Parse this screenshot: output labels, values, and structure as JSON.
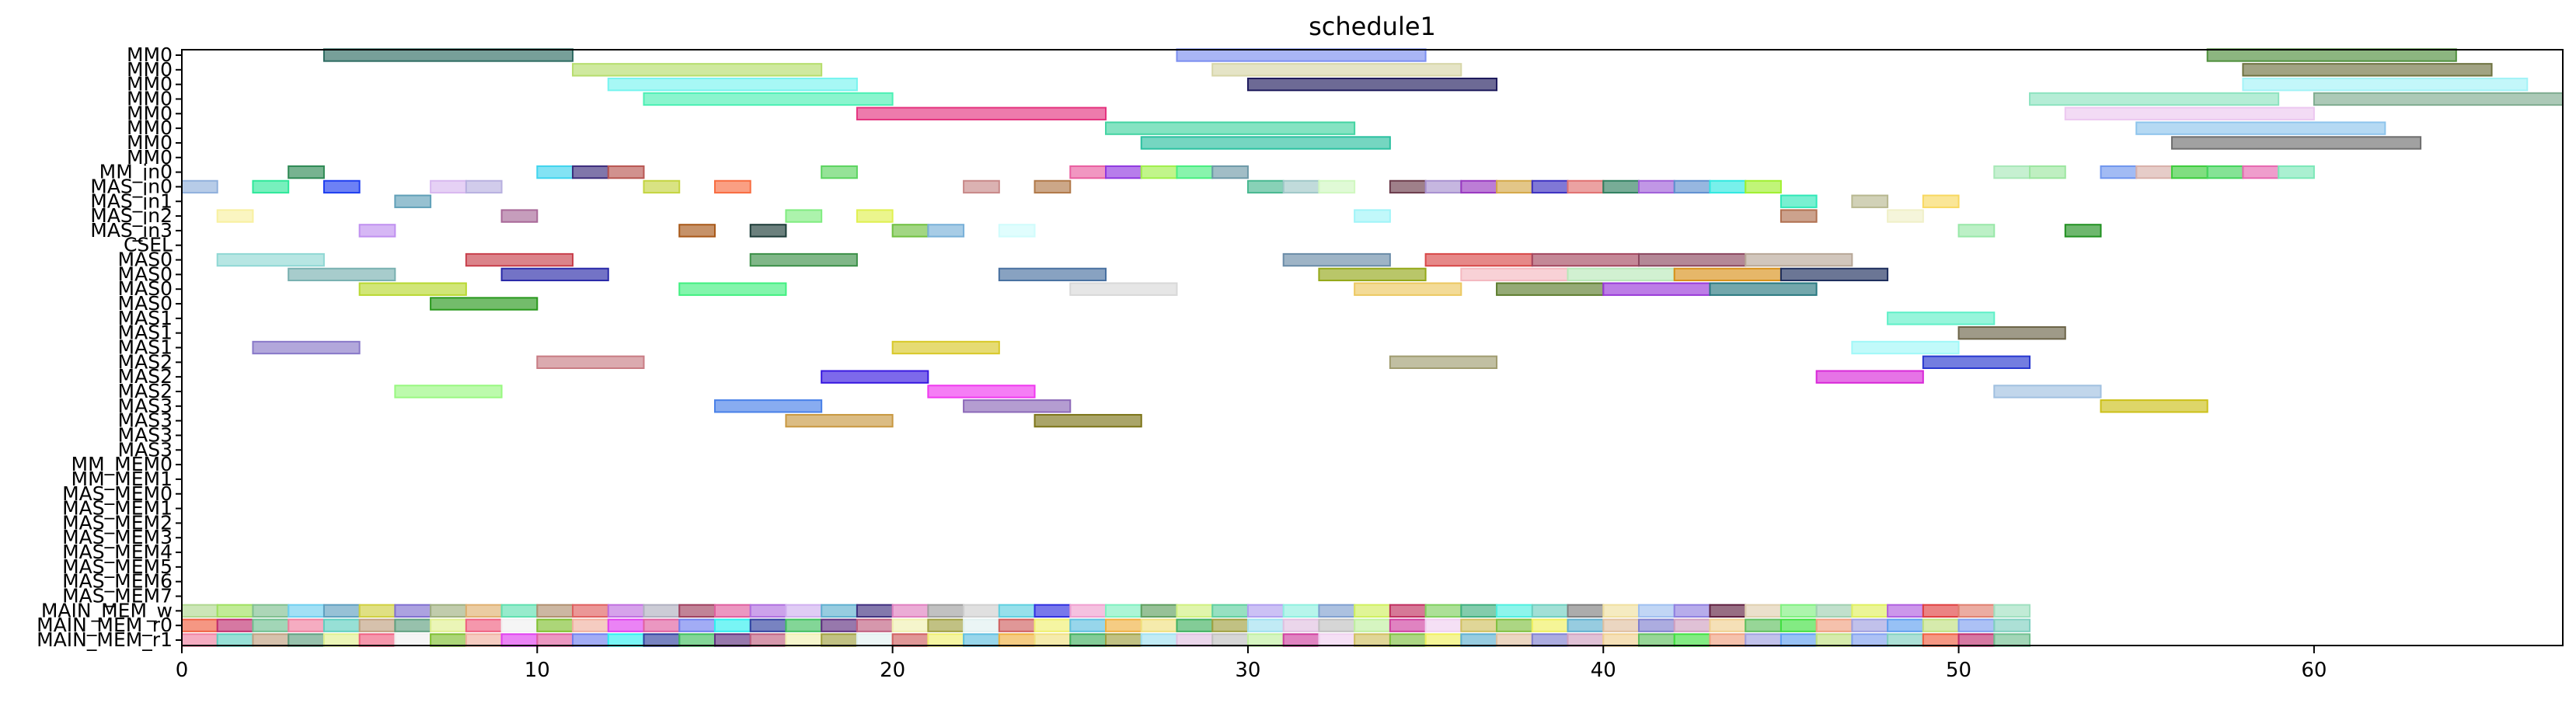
{
  "chart_data": {
    "type": "gantt",
    "title": "schedule1",
    "xlabel": "",
    "ylabel": "",
    "xlim": [
      0,
      67
    ],
    "x_ticks": [
      0,
      10,
      20,
      30,
      40,
      50,
      60
    ],
    "grid": false,
    "rows": [
      "MM0",
      "MM0",
      "MM0",
      "MM0",
      "MM0",
      "MM0",
      "MM0",
      "MM0",
      "MM_in0",
      "MAS_in0",
      "MAS_in1",
      "MAS_in2",
      "MAS_in3",
      "CSEL",
      "MAS0",
      "MAS0",
      "MAS0",
      "MAS0",
      "MAS1",
      "MAS1",
      "MAS1",
      "MAS2",
      "MAS2",
      "MAS2",
      "MAS3",
      "MAS3",
      "MAS3",
      "MAS3",
      "MM_MEM0",
      "MM_MEM1",
      "MAS_MEM0",
      "MAS_MEM1",
      "MAS_MEM2",
      "MAS_MEM3",
      "MAS_MEM4",
      "MAS_MEM5",
      "MAS_MEM6",
      "MAS_MEM7",
      "MAIN_MEM_w",
      "MAIN_MEM_r0",
      "MAIN_MEM_r1"
    ],
    "bars": [
      {
        "row": 0,
        "start": 4,
        "end": 11,
        "color": "#2e6b62"
      },
      {
        "row": 0,
        "start": 28,
        "end": 35,
        "color": "#7b8ef0"
      },
      {
        "row": 0,
        "start": 57,
        "end": 64,
        "color": "#4f8f3c"
      },
      {
        "row": 1,
        "start": 11,
        "end": 18,
        "color": "#b6dd6c"
      },
      {
        "row": 1,
        "start": 29,
        "end": 36,
        "color": "#d7d6a8"
      },
      {
        "row": 1,
        "start": 58,
        "end": 65,
        "color": "#6e7240"
      },
      {
        "row": 2,
        "start": 12,
        "end": 19,
        "color": "#78f4ef"
      },
      {
        "row": 2,
        "start": 30,
        "end": 37,
        "color": "#1e1a5c"
      },
      {
        "row": 2,
        "start": 58,
        "end": 66,
        "color": "#a3f3f7"
      },
      {
        "row": 3,
        "start": 13,
        "end": 20,
        "color": "#4cf0b4"
      },
      {
        "row": 3,
        "start": 52,
        "end": 59,
        "color": "#8de3c0"
      },
      {
        "row": 3,
        "start": 60,
        "end": 67,
        "color": "#7fac90"
      },
      {
        "row": 4,
        "start": 19,
        "end": 26,
        "color": "#e4347f"
      },
      {
        "row": 4,
        "start": 53,
        "end": 60,
        "color": "#ecc8f0"
      },
      {
        "row": 5,
        "start": 26,
        "end": 33,
        "color": "#43d4a2"
      },
      {
        "row": 5,
        "start": 55,
        "end": 62,
        "color": "#8ec4ec"
      },
      {
        "row": 6,
        "start": 27,
        "end": 34,
        "color": "#2bc0a0"
      },
      {
        "row": 6,
        "start": 56,
        "end": 63,
        "color": "#6e6e6e"
      },
      {
        "row": 8,
        "start": 3,
        "end": 4,
        "color": "#2e8a54"
      },
      {
        "row": 8,
        "start": 10,
        "end": 11,
        "color": "#40d4ee"
      },
      {
        "row": 8,
        "start": 11,
        "end": 12,
        "color": "#3c2c7c"
      },
      {
        "row": 8,
        "start": 12,
        "end": 13,
        "color": "#b85652"
      },
      {
        "row": 8,
        "start": 18,
        "end": 19,
        "color": "#5cd460"
      },
      {
        "row": 8,
        "start": 25,
        "end": 26,
        "color": "#e95ea0"
      },
      {
        "row": 8,
        "start": 26,
        "end": 27,
        "color": "#9038e0"
      },
      {
        "row": 8,
        "start": 27,
        "end": 28,
        "color": "#a0f04c"
      },
      {
        "row": 8,
        "start": 28,
        "end": 29,
        "color": "#48ee80"
      },
      {
        "row": 8,
        "start": 29,
        "end": 30,
        "color": "#6e9aa8"
      },
      {
        "row": 8,
        "start": 51,
        "end": 52,
        "color": "#a8e8b8"
      },
      {
        "row": 8,
        "start": 52,
        "end": 53,
        "color": "#9ce6a0"
      },
      {
        "row": 8,
        "start": 54,
        "end": 55,
        "color": "#7096ee"
      },
      {
        "row": 8,
        "start": 55,
        "end": 56,
        "color": "#d8b0aa"
      },
      {
        "row": 8,
        "start": 56,
        "end": 57,
        "color": "#3ccc3c"
      },
      {
        "row": 8,
        "start": 57,
        "end": 58,
        "color": "#44d45c"
      },
      {
        "row": 8,
        "start": 58,
        "end": 59,
        "color": "#e668b0"
      },
      {
        "row": 8,
        "start": 59,
        "end": 60,
        "color": "#7ce8b8"
      },
      {
        "row": 9,
        "start": 0,
        "end": 1,
        "color": "#90b0dc"
      },
      {
        "row": 9,
        "start": 2,
        "end": 3,
        "color": "#2ee89a"
      },
      {
        "row": 9,
        "start": 4,
        "end": 5,
        "color": "#1e3ef0"
      },
      {
        "row": 9,
        "start": 7,
        "end": 8,
        "color": "#d8b8f0"
      },
      {
        "row": 9,
        "start": 8,
        "end": 9,
        "color": "#b8b0e0"
      },
      {
        "row": 9,
        "start": 13,
        "end": 14,
        "color": "#c4d440"
      },
      {
        "row": 9,
        "start": 15,
        "end": 16,
        "color": "#f86c40"
      },
      {
        "row": 9,
        "start": 22,
        "end": 23,
        "color": "#c88888"
      },
      {
        "row": 9,
        "start": 24,
        "end": 25,
        "color": "#b07848"
      },
      {
        "row": 9,
        "start": 30,
        "end": 31,
        "color": "#48b890"
      },
      {
        "row": 9,
        "start": 31,
        "end": 32,
        "color": "#a0c8c8"
      },
      {
        "row": 9,
        "start": 32,
        "end": 33,
        "color": "#d0f8c0"
      },
      {
        "row": 9,
        "start": 34,
        "end": 35,
        "color": "#6c3c4c"
      },
      {
        "row": 9,
        "start": 35,
        "end": 36,
        "color": "#a890d0"
      },
      {
        "row": 9,
        "start": 36,
        "end": 37,
        "color": "#9838c0"
      },
      {
        "row": 9,
        "start": 37,
        "end": 38,
        "color": "#d4a848"
      },
      {
        "row": 9,
        "start": 38,
        "end": 39,
        "color": "#3c30c0"
      },
      {
        "row": 9,
        "start": 39,
        "end": 40,
        "color": "#e07070"
      },
      {
        "row": 9,
        "start": 40,
        "end": 41,
        "color": "#308060"
      },
      {
        "row": 9,
        "start": 41,
        "end": 42,
        "color": "#a060d8"
      },
      {
        "row": 9,
        "start": 42,
        "end": 43,
        "color": "#6090d0"
      },
      {
        "row": 9,
        "start": 43,
        "end": 44,
        "color": "#30e8e0"
      },
      {
        "row": 9,
        "start": 44,
        "end": 45,
        "color": "#a0f030"
      },
      {
        "row": 10,
        "start": 6,
        "end": 7,
        "color": "#60a0b8"
      },
      {
        "row": 10,
        "start": 45,
        "end": 46,
        "color": "#30e8b8"
      },
      {
        "row": 10,
        "start": 47,
        "end": 48,
        "color": "#b8b890"
      },
      {
        "row": 10,
        "start": 49,
        "end": 50,
        "color": "#f8d860"
      },
      {
        "row": 11,
        "start": 1,
        "end": 2,
        "color": "#f8f0a0"
      },
      {
        "row": 11,
        "start": 9,
        "end": 10,
        "color": "#a86898"
      },
      {
        "row": 11,
        "start": 17,
        "end": 18,
        "color": "#80ec80"
      },
      {
        "row": 11,
        "start": 19,
        "end": 20,
        "color": "#e0f050"
      },
      {
        "row": 11,
        "start": 33,
        "end": 34,
        "color": "#a0f4f8"
      },
      {
        "row": 11,
        "start": 45,
        "end": 46,
        "color": "#b07050"
      },
      {
        "row": 11,
        "start": 48,
        "end": 49,
        "color": "#f0f0c8"
      },
      {
        "row": 12,
        "start": 5,
        "end": 6,
        "color": "#c090f0"
      },
      {
        "row": 12,
        "start": 14,
        "end": 15,
        "color": "#a85818"
      },
      {
        "row": 12,
        "start": 16,
        "end": 17,
        "color": "#1c3c38"
      },
      {
        "row": 12,
        "start": 20,
        "end": 21,
        "color": "#70c040"
      },
      {
        "row": 12,
        "start": 21,
        "end": 22,
        "color": "#78b0d8"
      },
      {
        "row": 12,
        "start": 23,
        "end": 24,
        "color": "#d0fcfc"
      },
      {
        "row": 12,
        "start": 50,
        "end": 51,
        "color": "#98e8a8"
      },
      {
        "row": 12,
        "start": 53,
        "end": 54,
        "color": "#209020"
      },
      {
        "row": 14,
        "start": 1,
        "end": 4,
        "color": "#90d8d4"
      },
      {
        "row": 14,
        "start": 8,
        "end": 11,
        "color": "#c8404c"
      },
      {
        "row": 14,
        "start": 16,
        "end": 19,
        "color": "#3c9048"
      },
      {
        "row": 14,
        "start": 31,
        "end": 34,
        "color": "#6a8ca8"
      },
      {
        "row": 14,
        "start": 35,
        "end": 38,
        "color": "#d84848"
      },
      {
        "row": 14,
        "start": 38,
        "end": 41,
        "color": "#a44860"
      },
      {
        "row": 14,
        "start": 41,
        "end": 44,
        "color": "#8c4860"
      },
      {
        "row": 14,
        "start": 44,
        "end": 47,
        "color": "#b8a898"
      },
      {
        "row": 15,
        "start": 3,
        "end": 6,
        "color": "#78b0b0"
      },
      {
        "row": 15,
        "start": 9,
        "end": 12,
        "color": "#2828a8"
      },
      {
        "row": 15,
        "start": 23,
        "end": 26,
        "color": "#4870a0"
      },
      {
        "row": 15,
        "start": 32,
        "end": 35,
        "color": "#94a818"
      },
      {
        "row": 15,
        "start": 36,
        "end": 39,
        "color": "#f4b8c0"
      },
      {
        "row": 15,
        "start": 39,
        "end": 42,
        "color": "#b8e8b8"
      },
      {
        "row": 15,
        "start": 42,
        "end": 45,
        "color": "#d89018"
      },
      {
        "row": 15,
        "start": 45,
        "end": 48,
        "color": "#1c2c5c"
      },
      {
        "row": 16,
        "start": 5,
        "end": 8,
        "color": "#b8d830"
      },
      {
        "row": 16,
        "start": 14,
        "end": 17,
        "color": "#40f080"
      },
      {
        "row": 16,
        "start": 25,
        "end": 28,
        "color": "#d8d8d8"
      },
      {
        "row": 16,
        "start": 33,
        "end": 36,
        "color": "#ecc860"
      },
      {
        "row": 16,
        "start": 37,
        "end": 40,
        "color": "#5c7c2c"
      },
      {
        "row": 16,
        "start": 40,
        "end": 43,
        "color": "#9838d8"
      },
      {
        "row": 16,
        "start": 43,
        "end": 46,
        "color": "#287880"
      },
      {
        "row": 17,
        "start": 7,
        "end": 10,
        "color": "#28981c"
      },
      {
        "row": 18,
        "start": 48,
        "end": 51,
        "color": "#60f0c8"
      },
      {
        "row": 19,
        "start": 50,
        "end": 53,
        "color": "#6c6448"
      },
      {
        "row": 20,
        "start": 2,
        "end": 5,
        "color": "#8878c8"
      },
      {
        "row": 20,
        "start": 20,
        "end": 23,
        "color": "#d8c828"
      },
      {
        "row": 20,
        "start": 47,
        "end": 50,
        "color": "#a0f8f8"
      },
      {
        "row": 21,
        "start": 10,
        "end": 13,
        "color": "#c87c84"
      },
      {
        "row": 21,
        "start": 34,
        "end": 37,
        "color": "#a09c70"
      },
      {
        "row": 21,
        "start": 49,
        "end": 52,
        "color": "#2838d0"
      },
      {
        "row": 22,
        "start": 18,
        "end": 21,
        "color": "#3818e0"
      },
      {
        "row": 22,
        "start": 46,
        "end": 49,
        "color": "#d828d8"
      },
      {
        "row": 23,
        "start": 6,
        "end": 9,
        "color": "#98f880"
      },
      {
        "row": 23,
        "start": 21,
        "end": 24,
        "color": "#f038f0"
      },
      {
        "row": 23,
        "start": 51,
        "end": 54,
        "color": "#a0c0e0"
      },
      {
        "row": 24,
        "start": 15,
        "end": 18,
        "color": "#4880e8"
      },
      {
        "row": 24,
        "start": 22,
        "end": 25,
        "color": "#8c68b8"
      },
      {
        "row": 24,
        "start": 54,
        "end": 57,
        "color": "#ccc018"
      },
      {
        "row": 25,
        "start": 17,
        "end": 20,
        "color": "#c89840"
      },
      {
        "row": 25,
        "start": 24,
        "end": 27,
        "color": "#7c7418"
      }
    ],
    "mem_rows": {
      "w": [
        "#b0d890",
        "#a0e060",
        "#80c090",
        "#70d0f0",
        "#60a0c0",
        "#d0d040",
        "#8070d0",
        "#a0b080",
        "#e0b070",
        "#60e0b0",
        "#b09070",
        "#e06060",
        "#c070e0",
        "#b0b0c0",
        "#a04060",
        "#e060a0",
        "#b070e0",
        "#d0b0f0",
        "#60b0d0",
        "#403080",
        "#e080c0",
        "#a0a0a0",
        "#d0d0d0",
        "#60d0e0",
        "#3030e0",
        "#f0a0d0",
        "#80f0c0",
        "#60a060",
        "#d0f080",
        "#60d0a0",
        "#b0a0f0",
        "#90f0e0",
        "#80a0d0",
        "#d0f060",
        "#c03060",
        "#80d060",
        "#40b080",
        "#50f0e0",
        "#70d0c0",
        "#808080",
        "#f0e0a0",
        "#a0c0f0",
        "#9080e0",
        "#602040",
        "#e0d0b0",
        "#80f080",
        "#a0d0b0",
        "#e0f060",
        "#b060e0",
        "#e04040",
        "#e08070",
        "#a0e0c0"
      ],
      "r0": [
        "#f06040",
        "#c03070",
        "#70c090",
        "#f080a0",
        "#60d0c0",
        "#c0a080",
        "#60a080",
        "#e0f090",
        "#f06080",
        "#f0f0f0",
        "#80c030",
        "#f0b0a0",
        "#e040f0",
        "#e060a0",
        "#7080f0",
        "#30f0f0",
        "#3040a0",
        "#40c060",
        "#603080",
        "#c06080",
        "#f0f0b0",
        "#a0a040",
        "#e0f0f0",
        "#d06060",
        "#f0f070",
        "#60c0e0",
        "#f0b040",
        "#f0e080",
        "#40b060",
        "#a0a040",
        "#a0e0f0",
        "#e0c0e0",
        "#c0c0c0",
        "#c0f0a0",
        "#d040a0",
        "#f0d0f0",
        "#d0c060",
        "#80c040",
        "#f0f060",
        "#60b0d0",
        "#e0c0a0",
        "#8080d0",
        "#d0a0c0",
        "#f0d090",
        "#60c060",
        "#40e040",
        "#f0a080",
        "#a0a0e0",
        "#60a0f0",
        "#c0e080",
        "#80a0f0",
        "#80d0c0"
      ]
    }
  }
}
